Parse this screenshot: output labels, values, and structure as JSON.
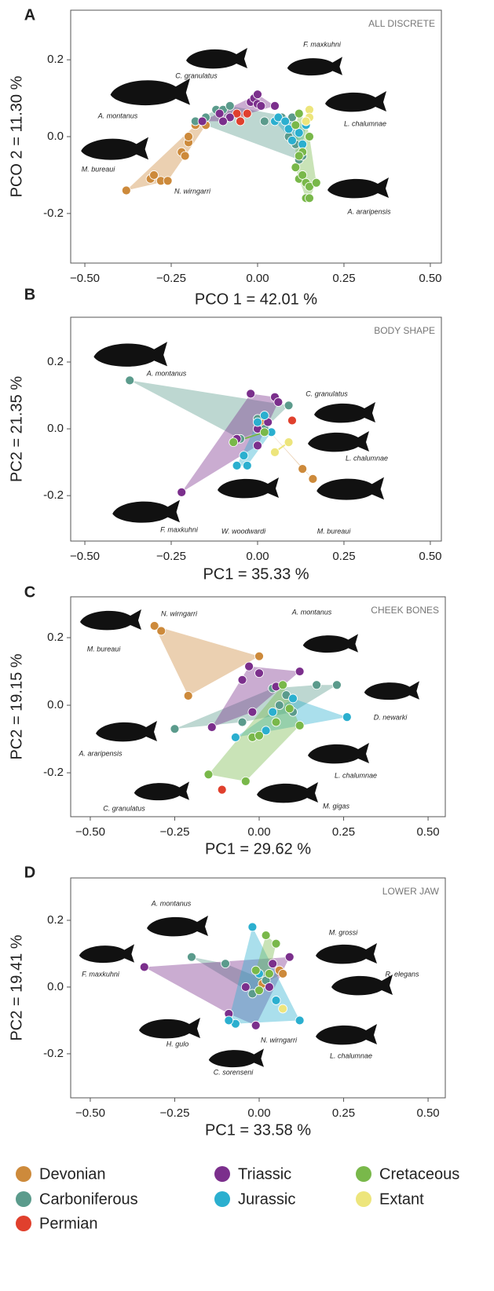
{
  "chart_data": [
    {
      "type": "scatter",
      "panel": "A",
      "title": "ALL DISCRETE",
      "xlabel": "PCO 1 = 42.01 %",
      "ylabel": "PCO 2 = 11.30 %",
      "xlim": [
        -0.541,
        0.532
      ],
      "ylim": [
        -0.329,
        0.329
      ],
      "xticks": [
        {
          "value": -0.5,
          "label": "−0.50"
        },
        {
          "value": -0.25,
          "label": "−0.25"
        },
        {
          "value": 0,
          "label": "0.00"
        },
        0.25,
        {
          "value": 0.5,
          "label": "0.50"
        }
      ],
      "yticks": [
        -0.2,
        {
          "value": 0,
          "label": "0.0"
        },
        0.2
      ],
      "series": [
        {
          "name": "Devonian",
          "color": "#cd8a3b",
          "x": [
            -0.38,
            -0.31,
            -0.3,
            -0.28,
            -0.26,
            -0.22,
            -0.21,
            -0.2,
            -0.2,
            -0.18,
            -0.15
          ],
          "y": [
            -0.14,
            -0.11,
            -0.1,
            -0.115,
            -0.115,
            -0.04,
            -0.05,
            -0.015,
            0,
            0.03,
            0.03
          ]
        },
        {
          "name": "Carboniferous",
          "color": "#5b9b8c",
          "x": [
            -0.18,
            -0.15,
            -0.12,
            -0.1,
            -0.08,
            0.02,
            0.07,
            0.1,
            0.09,
            0.11,
            0.12,
            0.13
          ],
          "y": [
            0.04,
            0.05,
            0.07,
            0.07,
            0.08,
            0.04,
            0.05,
            0.05,
            0,
            -0.02,
            -0.06,
            -0.05
          ]
        },
        {
          "name": "Permian",
          "color": "#e0402d",
          "x": [
            -0.06,
            -0.05,
            -0.03
          ],
          "y": [
            0.06,
            0.04,
            0.06
          ]
        },
        {
          "name": "Triassic",
          "color": "#7b2f8c",
          "x": [
            -0.16,
            -0.11,
            -0.08,
            -0.02,
            -0.01,
            0,
            0.01,
            0,
            0.05,
            -0.1
          ],
          "y": [
            0.04,
            0.06,
            0.05,
            0.09,
            0.1,
            0.085,
            0.08,
            0.11,
            0.08,
            0.04
          ]
        },
        {
          "name": "Jurassic",
          "color": "#2bafcf",
          "x": [
            0.05,
            0.06,
            0.08,
            0.09,
            0.1,
            0.12,
            0.13,
            0.14
          ],
          "y": [
            0.04,
            0.05,
            0.04,
            0.02,
            -0.01,
            0.01,
            -0.02,
            0.03
          ]
        },
        {
          "name": "Cretaceous",
          "color": "#79b84a",
          "x": [
            0.11,
            0.12,
            0.13,
            0.14,
            0.15,
            0.14,
            0.15,
            0.17,
            0.12,
            0.11,
            0.14,
            0.15,
            0.13,
            0.12
          ],
          "y": [
            -0.08,
            -0.11,
            -0.1,
            -0.12,
            -0.13,
            -0.16,
            -0.16,
            -0.12,
            0.06,
            0.03,
            0.04,
            0,
            -0.04,
            -0.05
          ]
        },
        {
          "name": "Extant",
          "color": "#ede57c",
          "x": [
            0.15,
            0.15,
            0.14
          ],
          "y": [
            0.07,
            0.05,
            0.04
          ]
        }
      ],
      "annotations": [
        "A. montanus",
        "C. granulatus",
        "F. maxkuhni",
        "L. chalumnae",
        "M. bureaui",
        "N. wirngarri",
        "A. araripensis"
      ]
    },
    {
      "type": "scatter",
      "panel": "B",
      "title": "BODY SHAPE",
      "xlabel": "PC1 = 35.33 %",
      "ylabel": "PC2 = 21.35 %",
      "xlim": [
        -0.541,
        0.532
      ],
      "ylim": [
        -0.336,
        0.334
      ],
      "xticks": [
        {
          "value": -0.5,
          "label": "−0.50"
        },
        {
          "value": -0.25,
          "label": "−0.25"
        },
        {
          "value": 0,
          "label": "0.00"
        },
        0.25,
        {
          "value": 0.5,
          "label": "0.50"
        }
      ],
      "yticks": [
        -0.2,
        {
          "value": 0,
          "label": "0.0"
        },
        0.2
      ],
      "series": [
        {
          "name": "Devonian",
          "color": "#cd8a3b",
          "x": [
            0.13,
            0.16,
            0.01
          ],
          "y": [
            -0.12,
            -0.15,
            0.02
          ]
        },
        {
          "name": "Carboniferous",
          "color": "#5b9b8c",
          "x": [
            -0.37,
            0.02,
            0,
            -0.05,
            0.09
          ],
          "y": [
            0.145,
            0,
            0.03,
            -0.03,
            0.07
          ]
        },
        {
          "name": "Permian",
          "color": "#e0402d",
          "x": [
            0.1
          ],
          "y": [
            0.025
          ]
        },
        {
          "name": "Triassic",
          "color": "#7b2f8c",
          "x": [
            -0.22,
            -0.02,
            0.05,
            0.06,
            0,
            -0.06,
            0,
            0.03
          ],
          "y": [
            -0.19,
            0.105,
            0.095,
            0.08,
            0,
            -0.03,
            -0.05,
            0.02
          ]
        },
        {
          "name": "Jurassic",
          "color": "#2bafcf",
          "x": [
            -0.06,
            -0.03,
            -0.04,
            0,
            0.02,
            0.04
          ],
          "y": [
            -0.11,
            -0.11,
            -0.08,
            0.02,
            0.04,
            -0.01
          ]
        },
        {
          "name": "Cretaceous",
          "color": "#79b84a",
          "x": [
            -0.07,
            0.02
          ],
          "y": [
            -0.04,
            -0.01
          ]
        },
        {
          "name": "Extant",
          "color": "#ede57c",
          "x": [
            0.05,
            0.09
          ],
          "y": [
            -0.07,
            -0.04
          ]
        }
      ],
      "annotations": [
        "A. montanus",
        "C. granulatus",
        "L. chalumnae",
        "W. woodwardi",
        "M. bureaui",
        "F. maxkuhni"
      ]
    },
    {
      "type": "scatter",
      "panel": "C",
      "title": "CHEEK BONES",
      "xlabel": "PC1 = 29.62 %",
      "ylabel": "PC2 = 19.15 %",
      "xlim": [
        -0.558,
        0.551
      ],
      "ylim": [
        -0.33,
        0.321
      ],
      "xticks": [
        {
          "value": -0.5,
          "label": "−0.50"
        },
        {
          "value": -0.25,
          "label": "−0.25"
        },
        {
          "value": 0,
          "label": "0.00"
        },
        0.25,
        {
          "value": 0.5,
          "label": "0.50"
        }
      ],
      "yticks": [
        -0.2,
        {
          "value": 0,
          "label": "0.0"
        },
        0.2
      ],
      "series": [
        {
          "name": "Devonian",
          "color": "#cd8a3b",
          "x": [
            -0.31,
            -0.29,
            -0.21,
            0
          ],
          "y": [
            0.235,
            0.22,
            0.028,
            0.145
          ]
        },
        {
          "name": "Carboniferous",
          "color": "#5b9b8c",
          "x": [
            -0.25,
            0.23,
            0.17,
            0.04,
            0.08,
            0.1,
            -0.05,
            0.06
          ],
          "y": [
            -0.07,
            0.06,
            0.06,
            0.05,
            0.03,
            -0.02,
            -0.05,
            0
          ]
        },
        {
          "name": "Permian",
          "color": "#e0402d",
          "x": [
            -0.11
          ],
          "y": [
            -0.25
          ]
        },
        {
          "name": "Triassic",
          "color": "#7b2f8c",
          "x": [
            -0.14,
            -0.05,
            -0.03,
            0,
            0.05,
            0.12,
            -0.02
          ],
          "y": [
            -0.065,
            0.075,
            0.115,
            0.095,
            0.055,
            0.1,
            -0.02
          ]
        },
        {
          "name": "Jurassic",
          "color": "#2bafcf",
          "x": [
            0.26,
            -0.07,
            0.02,
            0.04,
            0.1
          ],
          "y": [
            -0.035,
            -0.095,
            -0.075,
            -0.02,
            0.02
          ]
        },
        {
          "name": "Cretaceous",
          "color": "#79b84a",
          "x": [
            -0.15,
            -0.04,
            -0.02,
            0.05,
            0.12,
            0.09,
            0.07,
            0
          ],
          "y": [
            -0.205,
            -0.225,
            -0.095,
            -0.05,
            -0.06,
            -0.01,
            0.06,
            -0.09
          ]
        },
        {
          "name": "Extant",
          "color": "#ede57c",
          "x": [],
          "y": []
        }
      ],
      "annotations": [
        "N. wirngarri",
        "M. bureaui",
        "A. montanus",
        "D. newarki",
        "A. araripensis",
        "L. chalumnae",
        "C. granulatus",
        "M. gigas"
      ]
    },
    {
      "type": "scatter",
      "panel": "D",
      "title": "LOWER JAW",
      "xlabel": "PC1 = 33.58 %",
      "ylabel": "PC2 = 19.41 %",
      "xlim": [
        -0.558,
        0.551
      ],
      "ylim": [
        -0.332,
        0.327
      ],
      "xticks": [
        {
          "value": -0.5,
          "label": "−0.50"
        },
        {
          "value": -0.25,
          "label": "−0.25"
        },
        {
          "value": 0,
          "label": "0.00"
        },
        0.25,
        {
          "value": 0.5,
          "label": "0.50"
        }
      ],
      "yticks": [
        -0.2,
        {
          "value": 0,
          "label": "0.0"
        },
        0.2
      ],
      "series": [
        {
          "name": "Devonian",
          "color": "#cd8a3b",
          "x": [
            0.06,
            0.07,
            0.01
          ],
          "y": [
            0.05,
            0.04,
            0.01
          ]
        },
        {
          "name": "Carboniferous",
          "color": "#5b9b8c",
          "x": [
            -0.2,
            -0.1,
            -0.02,
            0.02
          ],
          "y": [
            0.09,
            0.07,
            -0.02,
            0.02
          ]
        },
        {
          "name": "Permian",
          "color": "#e0402d",
          "x": [],
          "y": []
        },
        {
          "name": "Triassic",
          "color": "#7b2f8c",
          "x": [
            -0.34,
            -0.09,
            -0.01,
            0.04,
            0.09,
            -0.04,
            0.03
          ],
          "y": [
            0.06,
            -0.08,
            -0.115,
            0.07,
            0.09,
            0,
            0
          ]
        },
        {
          "name": "Jurassic",
          "color": "#2bafcf",
          "x": [
            -0.02,
            -0.07,
            -0.09,
            0.12,
            0,
            0.05
          ],
          "y": [
            0.18,
            -0.11,
            -0.1,
            -0.1,
            0.04,
            -0.04
          ]
        },
        {
          "name": "Cretaceous",
          "color": "#79b84a",
          "x": [
            0.02,
            0.05,
            -0.01,
            0.03,
            0
          ],
          "y": [
            0.155,
            0.13,
            0.05,
            0.04,
            -0.01
          ]
        },
        {
          "name": "Extant",
          "color": "#ede57c",
          "x": [
            0.07
          ],
          "y": [
            -0.065
          ]
        }
      ],
      "annotations": [
        "A. montanus",
        "F. maxkuhni",
        "M. grossi",
        "R. elegans",
        "H. gulo",
        "N. wirngarri",
        "L. chalumnae",
        "C. sorenseni"
      ]
    }
  ]
}
